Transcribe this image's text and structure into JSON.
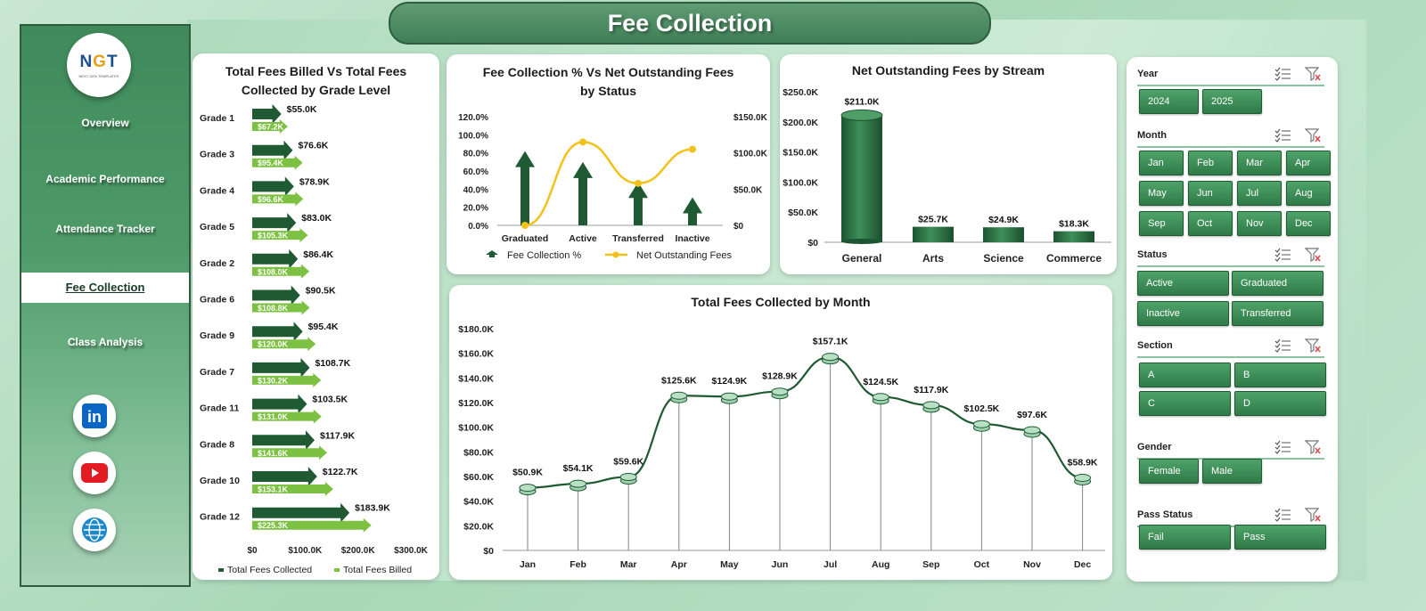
{
  "header": {
    "title": "Fee Collection"
  },
  "logo": {
    "text_n": "N",
    "text_g": "G",
    "text_t": "T",
    "subtitle": "NEXT GEN TEMPLATES"
  },
  "sidebar": {
    "items": [
      {
        "label": "Overview"
      },
      {
        "label": "Academic Performance"
      },
      {
        "label": "Attendance Tracker"
      },
      {
        "label": "Fee Collection",
        "active": true
      },
      {
        "label": "Class Analysis"
      }
    ],
    "social": [
      {
        "icon": "linkedin-icon",
        "color": "#0a66c2",
        "text": "in"
      },
      {
        "icon": "youtube-icon",
        "color": "#e31b23"
      },
      {
        "icon": "globe-icon",
        "color": "#1e88c8"
      }
    ]
  },
  "colors": {
    "dark_green": "#1f5a33",
    "mid_green": "#2f7a48",
    "light_green": "#7dc142",
    "yellow": "#f2c21b"
  },
  "chart_data": [
    {
      "type": "bar",
      "title": "Total Fees Billed Vs Total Fees Collected by Grade Level",
      "categories": [
        "Grade 1",
        "Grade 3",
        "Grade 4",
        "Grade 5",
        "Grade 2",
        "Grade 6",
        "Grade 9",
        "Grade 7",
        "Grade 11",
        "Grade 8",
        "Grade 10",
        "Grade 12"
      ],
      "series": [
        {
          "name": "Total Fees Collected",
          "labels": [
            "$55.0K",
            "$76.6K",
            "$78.9K",
            "$83.0K",
            "$86.4K",
            "$90.5K",
            "$95.4K",
            "$108.7K",
            "$103.5K",
            "$117.9K",
            "$122.7K",
            "$183.9K"
          ],
          "values": [
            55.0,
            76.6,
            78.9,
            83.0,
            86.4,
            90.5,
            95.4,
            108.7,
            103.5,
            117.9,
            122.7,
            183.9
          ]
        },
        {
          "name": "Total Fees Billed",
          "labels": [
            "$67.2K",
            "$95.4K",
            "$96.6K",
            "$105.3K",
            "$108.0K",
            "$108.8K",
            "$120.0K",
            "$130.2K",
            "$131.0K",
            "$141.6K",
            "$153.1K",
            "$225.3K"
          ],
          "values": [
            67.2,
            95.4,
            96.6,
            105.3,
            108.0,
            108.8,
            120.0,
            130.2,
            131.0,
            141.6,
            153.1,
            225.3
          ]
        }
      ],
      "xticks": [
        "$0",
        "$100.0K",
        "$200.0K",
        "$300.0K"
      ],
      "xlim": [
        0,
        300
      ]
    },
    {
      "type": "bar",
      "title": "Fee Collection % Vs Net Outstanding Fees by Status",
      "categories": [
        "Graduated",
        "Active",
        "Transferred",
        "Inactive"
      ],
      "series": [
        {
          "name": "Fee Collection %",
          "values": [
            82,
            70,
            48,
            31
          ]
        },
        {
          "name": "Net Outstanding Fees",
          "values": [
            0,
            115,
            58,
            105
          ]
        }
      ],
      "yticks_left": [
        "120.0%",
        "100.0%",
        "80.0%",
        "60.0%",
        "40.0%",
        "20.0%",
        "0.0%"
      ],
      "yticks_right": [
        "$150.0K",
        "$100.0K",
        "$50.0K",
        "$0"
      ]
    },
    {
      "type": "bar",
      "title": "Net Outstanding Fees by Stream",
      "categories": [
        "General",
        "Arts",
        "Science",
        "Commerce"
      ],
      "values": [
        211.0,
        25.7,
        24.9,
        18.3
      ],
      "labels": [
        "$211.0K",
        "$25.7K",
        "$24.9K",
        "$18.3K"
      ],
      "yticks": [
        "$250.0K",
        "$200.0K",
        "$150.0K",
        "$100.0K",
        "$50.0K",
        "$0"
      ],
      "ylim": [
        0,
        250
      ]
    },
    {
      "type": "line",
      "title": "Total Fees Collected by Month",
      "categories": [
        "Jan",
        "Feb",
        "Mar",
        "Apr",
        "May",
        "Jun",
        "Jul",
        "Aug",
        "Sep",
        "Oct",
        "Nov",
        "Dec"
      ],
      "values": [
        50.9,
        54.1,
        59.6,
        125.6,
        124.9,
        128.9,
        157.1,
        124.5,
        117.9,
        102.5,
        97.6,
        58.9
      ],
      "labels": [
        "$50.9K",
        "$54.1K",
        "$59.6K",
        "$125.6K",
        "$124.9K",
        "$128.9K",
        "$157.1K",
        "$124.5K",
        "$117.9K",
        "$102.5K",
        "$97.6K",
        "$58.9K"
      ],
      "yticks": [
        "$180.0K",
        "$160.0K",
        "$140.0K",
        "$120.0K",
        "$100.0K",
        "$80.0K",
        "$60.0K",
        "$40.0K",
        "$20.0K",
        "$0"
      ],
      "ylim": [
        0,
        180
      ]
    }
  ],
  "filters": {
    "year": {
      "title": "Year",
      "options": [
        "2024",
        "2025"
      ]
    },
    "month": {
      "title": "Month",
      "options": [
        "Jan",
        "Feb",
        "Mar",
        "Apr",
        "May",
        "Jun",
        "Jul",
        "Aug",
        "Sep",
        "Oct",
        "Nov",
        "Dec"
      ]
    },
    "status": {
      "title": "Status",
      "options": [
        "Active",
        "Graduated",
        "Inactive",
        "Transferred"
      ]
    },
    "section": {
      "title": "Section",
      "options": [
        "A",
        "B",
        "C",
        "D"
      ]
    },
    "gender": {
      "title": "Gender",
      "options": [
        "Female",
        "Male"
      ]
    },
    "pass_status": {
      "title": "Pass Status",
      "options": [
        "Fail",
        "Pass"
      ]
    }
  }
}
